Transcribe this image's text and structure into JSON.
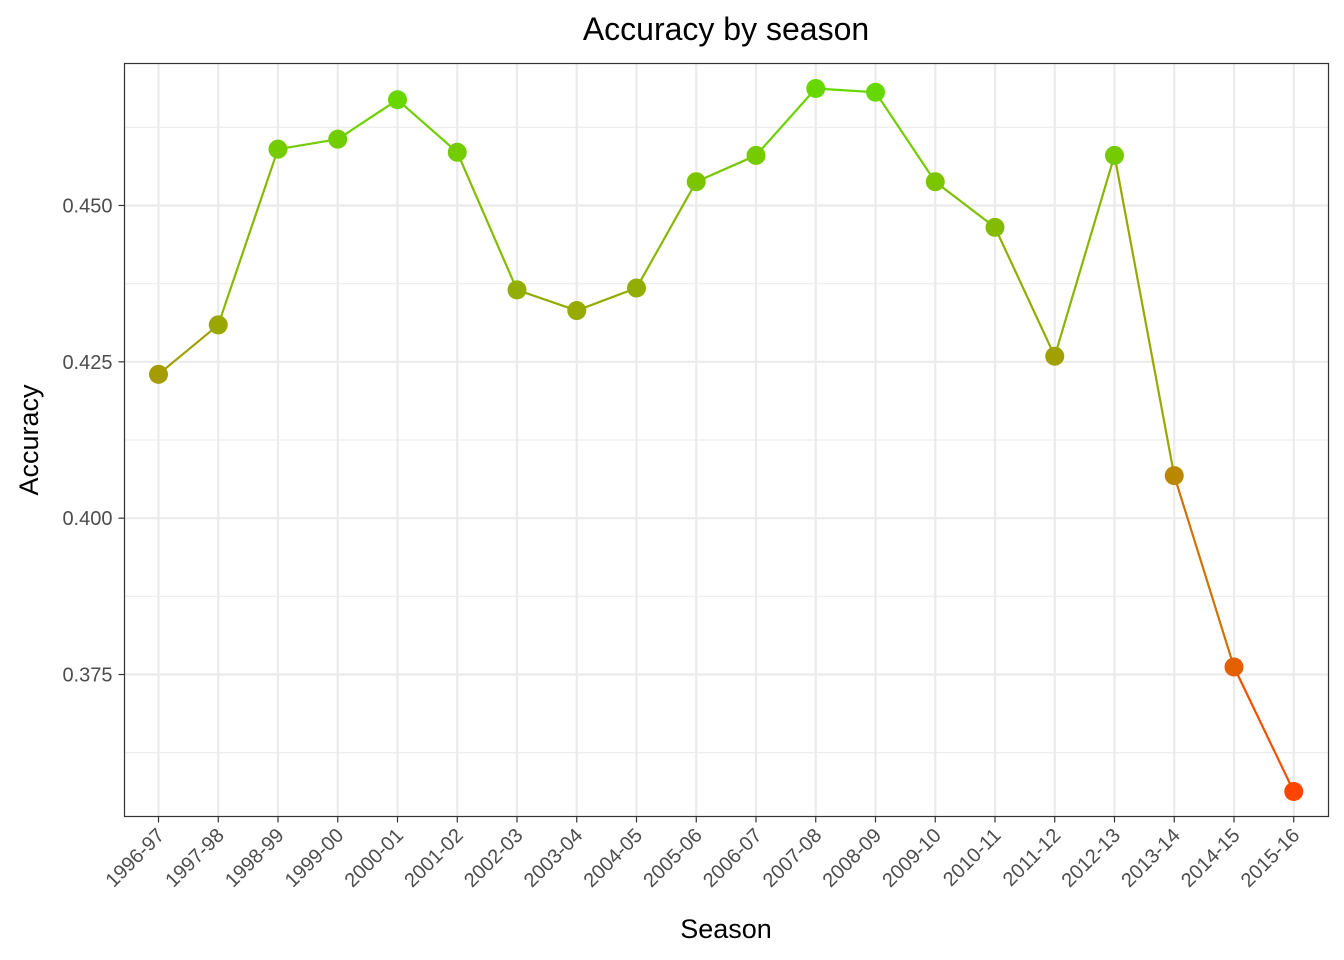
{
  "chart_data": {
    "type": "line",
    "title": "Accuracy by season",
    "xlabel": "Season",
    "ylabel": "Accuracy",
    "categories": [
      "1996-97",
      "1997-98",
      "1998-99",
      "1999-00",
      "2000-01",
      "2001-02",
      "2002-03",
      "2003-04",
      "2004-05",
      "2005-06",
      "2006-07",
      "2007-08",
      "2008-09",
      "2009-10",
      "2010-11",
      "2011-12",
      "2012-13",
      "2013-14",
      "2014-15",
      "2015-16"
    ],
    "values": [
      0.423,
      0.4309,
      0.459,
      0.4606,
      0.4669,
      0.4585,
      0.4365,
      0.4332,
      0.4368,
      0.4538,
      0.458,
      0.4687,
      0.4681,
      0.4538,
      0.4465,
      0.4259,
      0.458,
      0.4068,
      0.3762,
      0.3563
    ],
    "y_ticks": [
      0.375,
      0.4,
      0.425,
      0.45
    ],
    "y_tick_labels": [
      "0.375",
      "0.400",
      "0.425",
      "0.450"
    ],
    "ylim": [
      0.3523,
      0.4727
    ],
    "grid": true,
    "legend": "none",
    "color_scale": {
      "low": "#ff4500",
      "high": "#66d800"
    }
  }
}
